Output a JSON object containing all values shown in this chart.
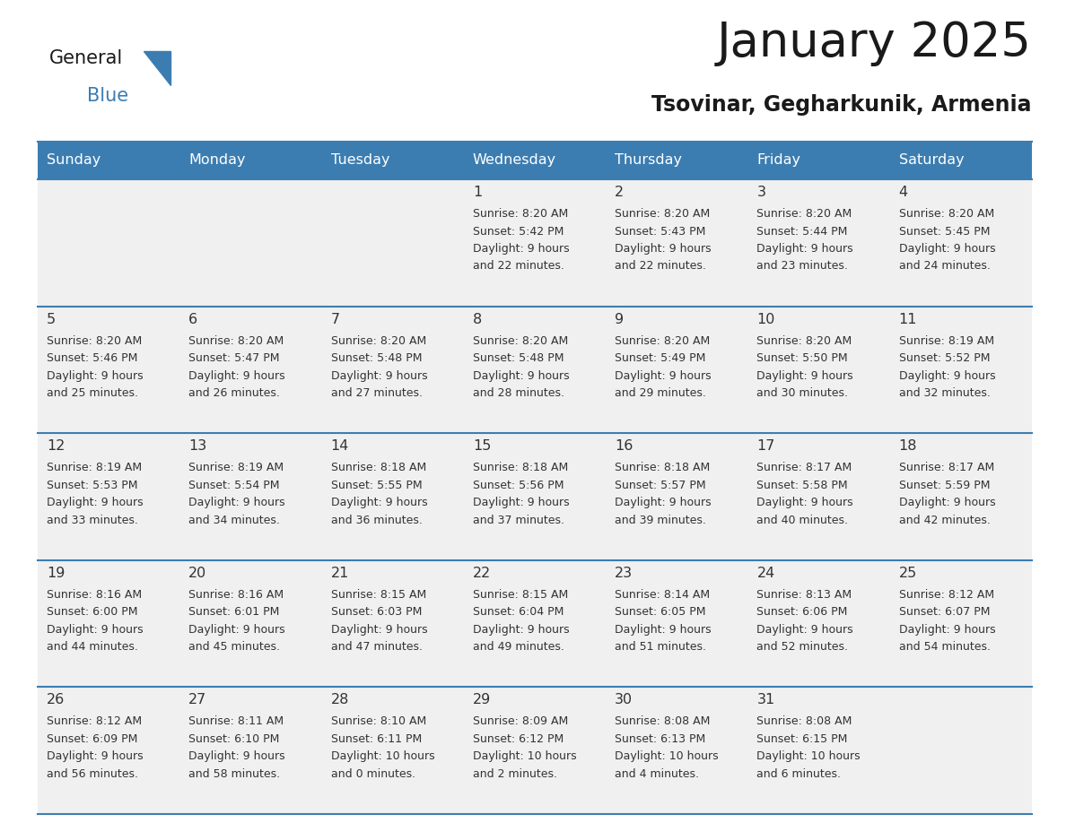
{
  "title": "January 2025",
  "subtitle": "Tsovinar, Gegharkunik, Armenia",
  "days_of_week": [
    "Sunday",
    "Monday",
    "Tuesday",
    "Wednesday",
    "Thursday",
    "Friday",
    "Saturday"
  ],
  "header_bg": "#3c7db1",
  "header_text": "#ffffff",
  "cell_bg": "#f0f0f0",
  "cell_border": "#3c7db1",
  "title_color": "#1a1a1a",
  "subtitle_color": "#1a1a1a",
  "text_color": "#333333",
  "calendar_data": [
    [
      null,
      null,
      null,
      {
        "day": 1,
        "sunrise": "8:20 AM",
        "sunset": "5:42 PM",
        "daylight": "9 hours",
        "daylight2": "and 22 minutes."
      },
      {
        "day": 2,
        "sunrise": "8:20 AM",
        "sunset": "5:43 PM",
        "daylight": "9 hours",
        "daylight2": "and 22 minutes."
      },
      {
        "day": 3,
        "sunrise": "8:20 AM",
        "sunset": "5:44 PM",
        "daylight": "9 hours",
        "daylight2": "and 23 minutes."
      },
      {
        "day": 4,
        "sunrise": "8:20 AM",
        "sunset": "5:45 PM",
        "daylight": "9 hours",
        "daylight2": "and 24 minutes."
      }
    ],
    [
      {
        "day": 5,
        "sunrise": "8:20 AM",
        "sunset": "5:46 PM",
        "daylight": "9 hours",
        "daylight2": "and 25 minutes."
      },
      {
        "day": 6,
        "sunrise": "8:20 AM",
        "sunset": "5:47 PM",
        "daylight": "9 hours",
        "daylight2": "and 26 minutes."
      },
      {
        "day": 7,
        "sunrise": "8:20 AM",
        "sunset": "5:48 PM",
        "daylight": "9 hours",
        "daylight2": "and 27 minutes."
      },
      {
        "day": 8,
        "sunrise": "8:20 AM",
        "sunset": "5:48 PM",
        "daylight": "9 hours",
        "daylight2": "and 28 minutes."
      },
      {
        "day": 9,
        "sunrise": "8:20 AM",
        "sunset": "5:49 PM",
        "daylight": "9 hours",
        "daylight2": "and 29 minutes."
      },
      {
        "day": 10,
        "sunrise": "8:20 AM",
        "sunset": "5:50 PM",
        "daylight": "9 hours",
        "daylight2": "and 30 minutes."
      },
      {
        "day": 11,
        "sunrise": "8:19 AM",
        "sunset": "5:52 PM",
        "daylight": "9 hours",
        "daylight2": "and 32 minutes."
      }
    ],
    [
      {
        "day": 12,
        "sunrise": "8:19 AM",
        "sunset": "5:53 PM",
        "daylight": "9 hours",
        "daylight2": "and 33 minutes."
      },
      {
        "day": 13,
        "sunrise": "8:19 AM",
        "sunset": "5:54 PM",
        "daylight": "9 hours",
        "daylight2": "and 34 minutes."
      },
      {
        "day": 14,
        "sunrise": "8:18 AM",
        "sunset": "5:55 PM",
        "daylight": "9 hours",
        "daylight2": "and 36 minutes."
      },
      {
        "day": 15,
        "sunrise": "8:18 AM",
        "sunset": "5:56 PM",
        "daylight": "9 hours",
        "daylight2": "and 37 minutes."
      },
      {
        "day": 16,
        "sunrise": "8:18 AM",
        "sunset": "5:57 PM",
        "daylight": "9 hours",
        "daylight2": "and 39 minutes."
      },
      {
        "day": 17,
        "sunrise": "8:17 AM",
        "sunset": "5:58 PM",
        "daylight": "9 hours",
        "daylight2": "and 40 minutes."
      },
      {
        "day": 18,
        "sunrise": "8:17 AM",
        "sunset": "5:59 PM",
        "daylight": "9 hours",
        "daylight2": "and 42 minutes."
      }
    ],
    [
      {
        "day": 19,
        "sunrise": "8:16 AM",
        "sunset": "6:00 PM",
        "daylight": "9 hours",
        "daylight2": "and 44 minutes."
      },
      {
        "day": 20,
        "sunrise": "8:16 AM",
        "sunset": "6:01 PM",
        "daylight": "9 hours",
        "daylight2": "and 45 minutes."
      },
      {
        "day": 21,
        "sunrise": "8:15 AM",
        "sunset": "6:03 PM",
        "daylight": "9 hours",
        "daylight2": "and 47 minutes."
      },
      {
        "day": 22,
        "sunrise": "8:15 AM",
        "sunset": "6:04 PM",
        "daylight": "9 hours",
        "daylight2": "and 49 minutes."
      },
      {
        "day": 23,
        "sunrise": "8:14 AM",
        "sunset": "6:05 PM",
        "daylight": "9 hours",
        "daylight2": "and 51 minutes."
      },
      {
        "day": 24,
        "sunrise": "8:13 AM",
        "sunset": "6:06 PM",
        "daylight": "9 hours",
        "daylight2": "and 52 minutes."
      },
      {
        "day": 25,
        "sunrise": "8:12 AM",
        "sunset": "6:07 PM",
        "daylight": "9 hours",
        "daylight2": "and 54 minutes."
      }
    ],
    [
      {
        "day": 26,
        "sunrise": "8:12 AM",
        "sunset": "6:09 PM",
        "daylight": "9 hours",
        "daylight2": "and 56 minutes."
      },
      {
        "day": 27,
        "sunrise": "8:11 AM",
        "sunset": "6:10 PM",
        "daylight": "9 hours",
        "daylight2": "and 58 minutes."
      },
      {
        "day": 28,
        "sunrise": "8:10 AM",
        "sunset": "6:11 PM",
        "daylight": "10 hours",
        "daylight2": "and 0 minutes."
      },
      {
        "day": 29,
        "sunrise": "8:09 AM",
        "sunset": "6:12 PM",
        "daylight": "10 hours",
        "daylight2": "and 2 minutes."
      },
      {
        "day": 30,
        "sunrise": "8:08 AM",
        "sunset": "6:13 PM",
        "daylight": "10 hours",
        "daylight2": "and 4 minutes."
      },
      {
        "day": 31,
        "sunrise": "8:08 AM",
        "sunset": "6:15 PM",
        "daylight": "10 hours",
        "daylight2": "and 6 minutes."
      },
      null
    ]
  ]
}
